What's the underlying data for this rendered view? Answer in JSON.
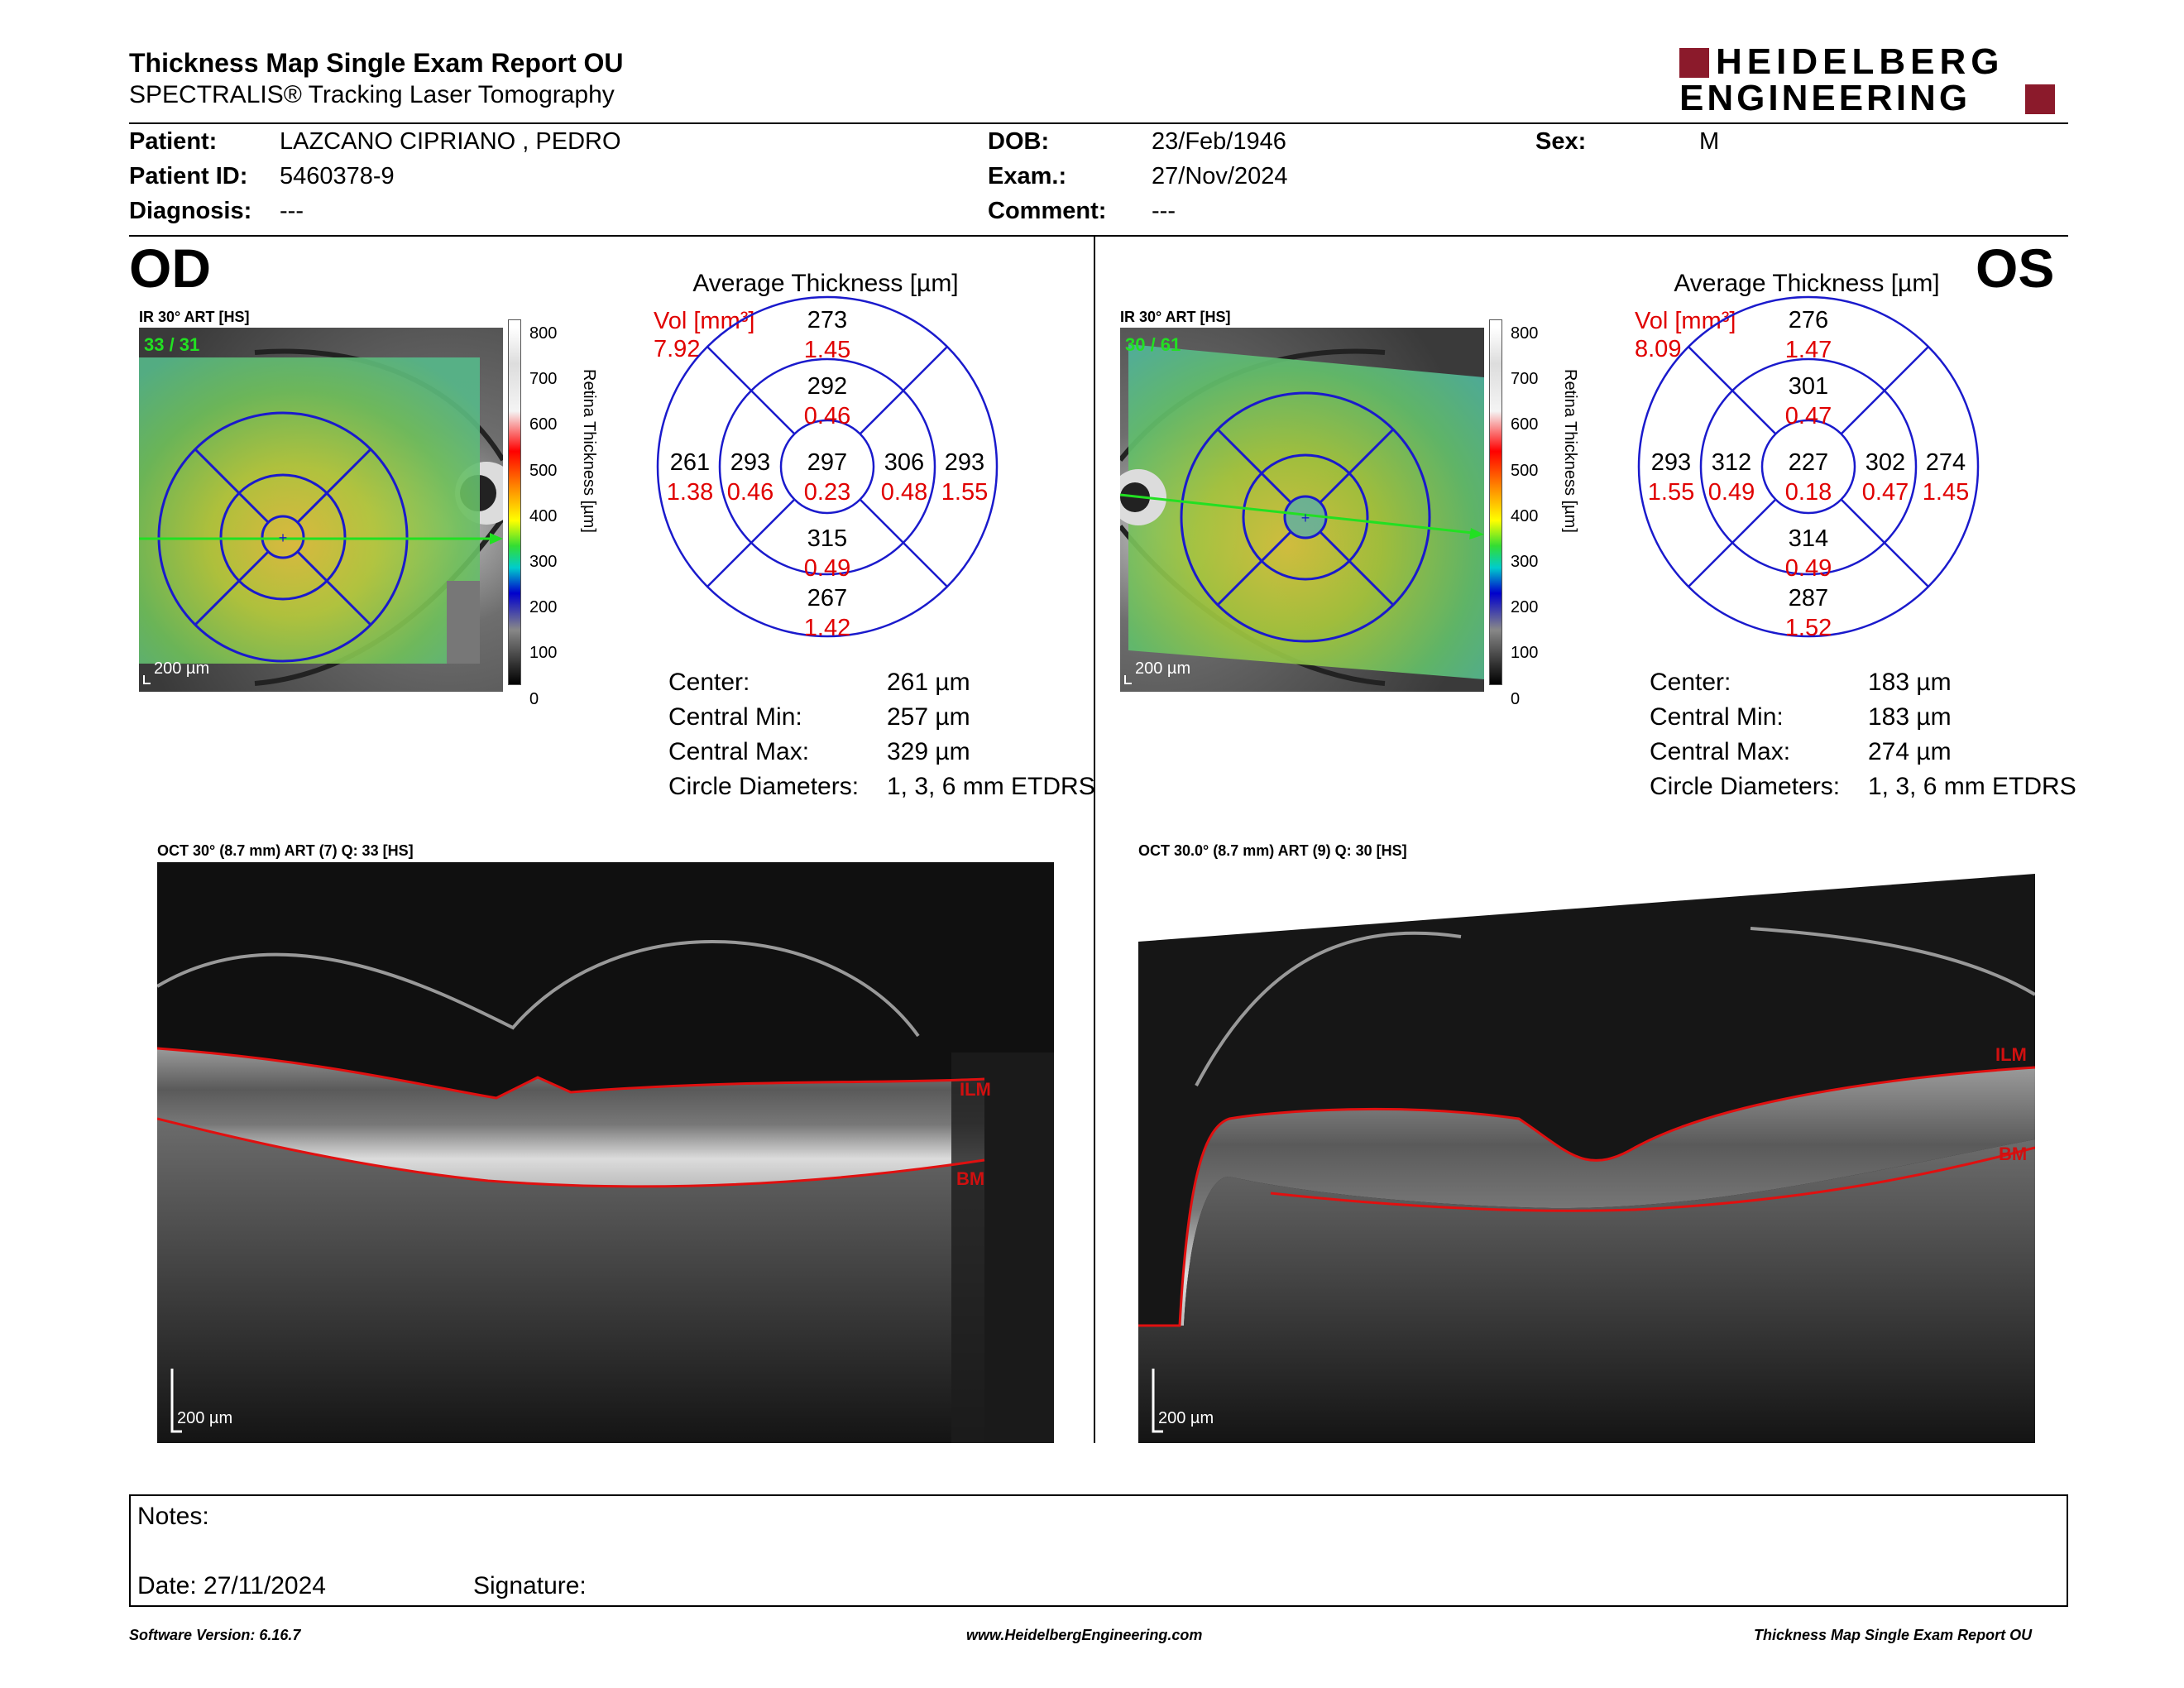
{
  "header": {
    "title": "Thickness Map Single Exam Report OU",
    "subtitle": "SPECTRALIS® Tracking Laser Tomography",
    "logo_line1": "HEIDELBERG",
    "logo_line2": "ENGINEERING",
    "brand_color": "#8b1a2b"
  },
  "patient": {
    "patient_label": "Patient:",
    "patient_value": "LAZCANO CIPRIANO , PEDRO",
    "id_label": "Patient ID:",
    "id_value": "5460378-9",
    "diagnosis_label": "Diagnosis:",
    "diagnosis_value": "---",
    "dob_label": "DOB:",
    "dob_value": "23/Feb/1946",
    "exam_label": "Exam.:",
    "exam_value": "27/Nov/2024",
    "comment_label": "Comment:",
    "comment_value": "---",
    "sex_label": "Sex:",
    "sex_value": "M"
  },
  "od": {
    "eye_label": "OD",
    "ir_label": "IR 30° ART [HS]",
    "ir_overlay": "33 / 31",
    "scale_label": "200 µm",
    "avg_title": "Average Thickness [µm]",
    "vol_label": "Vol [mm³]",
    "vol_value": "7.92",
    "etdrs": {
      "center_t": "297",
      "center_v": "0.23",
      "inner_sup_t": "292",
      "inner_sup_v": "0.46",
      "inner_inf_t": "315",
      "inner_inf_v": "0.49",
      "inner_left_t": "293",
      "inner_left_v": "0.46",
      "inner_right_t": "306",
      "inner_right_v": "0.48",
      "outer_sup_t": "273",
      "outer_sup_v": "1.45",
      "outer_inf_t": "267",
      "outer_inf_v": "1.42",
      "outer_left_t": "261",
      "outer_left_v": "1.38",
      "outer_right_t": "293",
      "outer_right_v": "1.55"
    },
    "stats": {
      "center_label": "Center:",
      "center_value": "261 µm",
      "min_label": "Central Min:",
      "min_value": "257 µm",
      "max_label": "Central Max:",
      "max_value": "329 µm",
      "circ_label": "Circle Diameters:",
      "circ_value": "1, 3, 6 mm ETDRS"
    },
    "oct_label": "OCT 30° (8.7 mm) ART (7) Q: 33 [HS]",
    "oct_ilm": "ILM",
    "oct_bm": "BM",
    "oct_scale": "200 µm"
  },
  "os": {
    "eye_label": "OS",
    "ir_label": "IR 30° ART [HS]",
    "ir_overlay": "30 / 61",
    "scale_label": "200 µm",
    "avg_title": "Average Thickness [µm]",
    "vol_label": "Vol [mm³]",
    "vol_value": "8.09",
    "etdrs": {
      "center_t": "227",
      "center_v": "0.18",
      "inner_sup_t": "301",
      "inner_sup_v": "0.47",
      "inner_inf_t": "314",
      "inner_inf_v": "0.49",
      "inner_left_t": "312",
      "inner_left_v": "0.49",
      "inner_right_t": "302",
      "inner_right_v": "0.47",
      "outer_sup_t": "276",
      "outer_sup_v": "1.47",
      "outer_inf_t": "287",
      "outer_inf_v": "1.52",
      "outer_left_t": "293",
      "outer_left_v": "1.55",
      "outer_right_t": "274",
      "outer_right_v": "1.45"
    },
    "stats": {
      "center_label": "Center:",
      "center_value": "183 µm",
      "min_label": "Central Min:",
      "min_value": "183 µm",
      "max_label": "Central Max:",
      "max_value": "274 µm",
      "circ_label": "Circle Diameters:",
      "circ_value": "1, 3, 6 mm ETDRS"
    },
    "oct_label": "OCT 30.0° (8.7 mm) ART (9) Q: 30 [HS]",
    "oct_ilm": "ILM",
    "oct_bm": "BM",
    "oct_scale": "200 µm"
  },
  "colorbar": {
    "ticks": [
      "800",
      "700",
      "600",
      "500",
      "400",
      "300",
      "200",
      "100",
      "0"
    ],
    "title": "Retina  Thickness [µm]"
  },
  "notes": {
    "notes_label": "Notes:",
    "date_label": "Date: 27/11/2024",
    "signature_label": "Signature:"
  },
  "footer": {
    "software": "Software Version: 6.16.7",
    "website": "www.HeidelbergEngineering.com",
    "report": "Thickness Map Single Exam Report OU"
  }
}
